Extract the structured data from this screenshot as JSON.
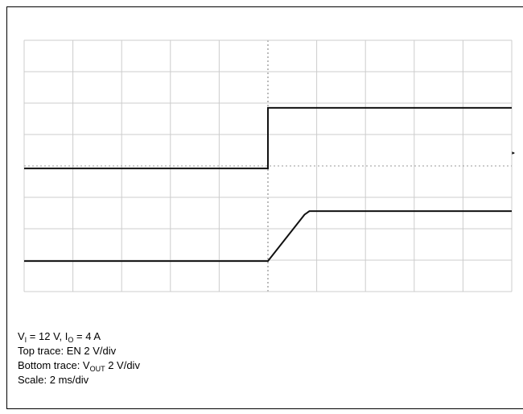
{
  "chart_data": {
    "type": "line",
    "xlim": [
      0,
      10
    ],
    "xticks": [
      0,
      1,
      2,
      3,
      4,
      5,
      6,
      7,
      8,
      9,
      10
    ],
    "ylim": [
      0,
      8
    ],
    "yticks": [
      0,
      1,
      2,
      3,
      4,
      5,
      6,
      7,
      8
    ],
    "grid": true,
    "series": [
      {
        "color": "#111111",
        "x": [
          0,
          5,
          5,
          10
        ],
        "values": [
          3.92,
          3.92,
          5.85,
          5.85
        ]
      },
      {
        "color": "#111111",
        "x": [
          0,
          5,
          5.75,
          5.85,
          10
        ],
        "values": [
          0.97,
          0.97,
          2.45,
          2.56,
          2.56
        ]
      }
    ],
    "caption": [
      {
        "parts": [
          {
            "text": "V"
          },
          {
            "text": "I",
            "sub": true
          },
          {
            "text": " = 12 V, I"
          },
          {
            "text": "O",
            "sub": true
          },
          {
            "text": " = 4 A"
          }
        ]
      },
      {
        "parts": [
          {
            "text": "Top trace: EN 2 V/div"
          }
        ]
      },
      {
        "parts": [
          {
            "text": "Bottom trace: V"
          },
          {
            "text": "OUT",
            "sub": true
          },
          {
            "text": " 2 V/div"
          }
        ]
      },
      {
        "parts": [
          {
            "text": "Scale: 2 ms/div"
          }
        ]
      }
    ]
  }
}
